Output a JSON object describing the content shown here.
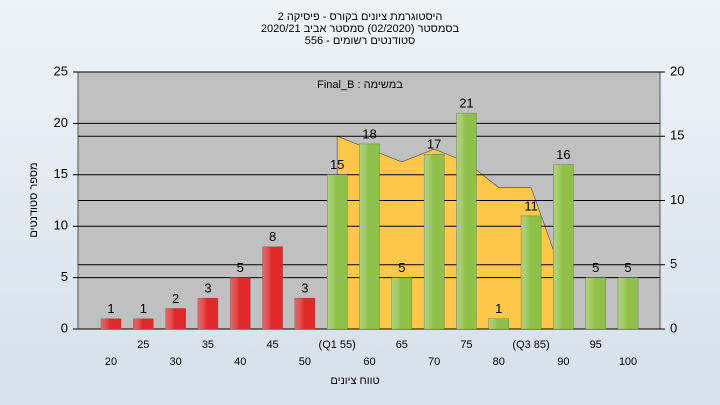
{
  "chart_data": {
    "type": "bar",
    "title": [
      "היסטוגרמת ציונים בקורס - פיסיקה 2",
      "בסמסטר  (02/2020)  סמסטר אביב 2020/21",
      "סטודנטים רשומים - 556"
    ],
    "subtitle": "Final_B : במשימה",
    "y_label": "מספר סטודנטים",
    "x_label": "טווח ציונים",
    "categories": [
      "20",
      "25",
      "30",
      "35",
      "40",
      "45",
      "50",
      "(Q1 55)",
      "60",
      "65",
      "70",
      "75",
      "80",
      "(Q3 85)",
      "90",
      "95",
      "100"
    ],
    "values": [
      1,
      1,
      2,
      3,
      5,
      8,
      3,
      15,
      18,
      5,
      17,
      21,
      1,
      11,
      16,
      5,
      5
    ],
    "colors": [
      "#e02a2a",
      "#e02a2a",
      "#e02a2a",
      "#e02a2a",
      "#e02a2a",
      "#e02a2a",
      "#e02a2a",
      "#8fc04a",
      "#8fc04a",
      "#8fc04a",
      "#8fc04a",
      "#8fc04a",
      "#8fc04a",
      "#8fc04a",
      "#8fc04a",
      "#8fc04a",
      "#8fc04a"
    ],
    "area": {
      "axis": "y2",
      "color": "#ffc84a",
      "values": [
        null,
        null,
        null,
        null,
        null,
        null,
        null,
        15,
        14,
        13,
        14,
        13,
        11,
        11,
        4,
        null,
        null
      ]
    },
    "ylim": [
      0,
      25
    ],
    "yticks": [
      0,
      5,
      10,
      15,
      20,
      25
    ],
    "y2lim": [
      0,
      20
    ],
    "y2ticks": [
      0,
      5,
      10,
      15,
      20
    ],
    "grid": true
  }
}
